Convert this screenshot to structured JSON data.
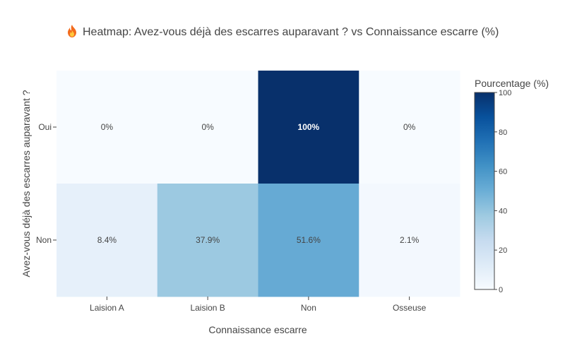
{
  "chart_data": {
    "type": "heatmap",
    "title_icon": "fire-icon",
    "title": "Heatmap: Avez-vous déjà des escarres auparavant ? vs Connaissance escarre (%)",
    "xlabel": "Connaissance escarre",
    "ylabel": "Avez-vous déjà des escarres auparavant ?",
    "x_categories": [
      "Laision A",
      "Laision B",
      "Non",
      "Osseuse"
    ],
    "y_categories": [
      "Oui",
      "Non"
    ],
    "values": [
      [
        0,
        0,
        100,
        0
      ],
      [
        8.4,
        37.9,
        51.6,
        2.1
      ]
    ],
    "labels": [
      [
        "0%",
        "0%",
        "100%",
        "0%"
      ],
      [
        "8.4%",
        "37.9%",
        "51.6%",
        "2.1%"
      ]
    ],
    "colorscale": "Blues",
    "colorbar": {
      "title": "Pourcentage (%)",
      "range": [
        0,
        100
      ],
      "ticks": [
        0,
        20,
        40,
        60,
        80,
        100
      ]
    },
    "colors": {
      "low": "#f7fbff",
      "high": "#08306b"
    }
  }
}
